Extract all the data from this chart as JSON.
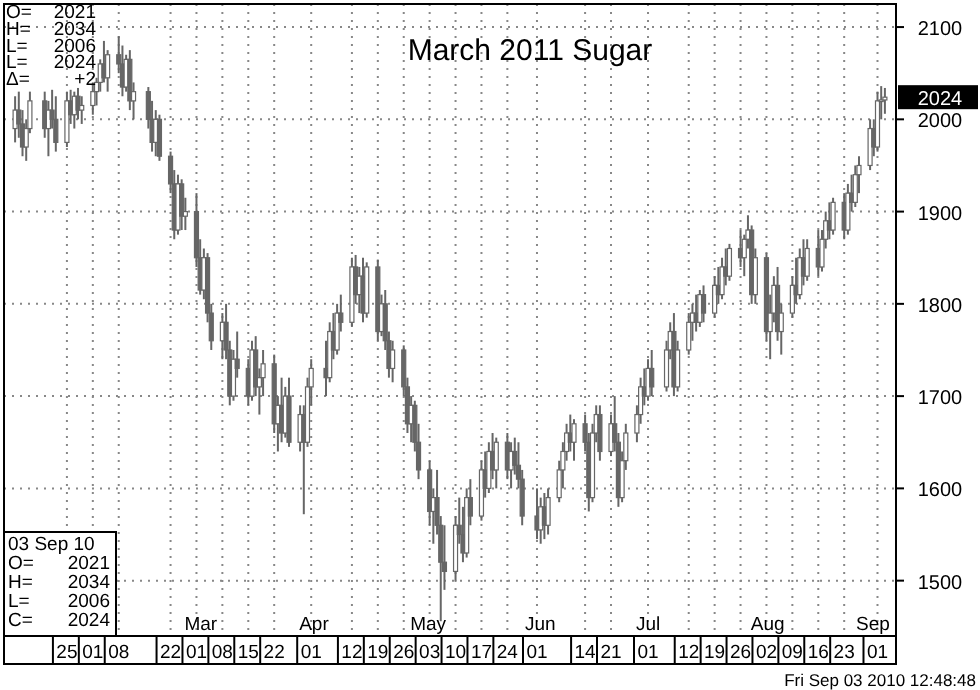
{
  "chart_data": {
    "type": "candlestick",
    "title": "March 2011 Sugar",
    "color": "#666666",
    "grid": true,
    "xlim": [
      "2010-01-08",
      "2010-09-06"
    ],
    "xticks": [
      {
        "value": "2010-01-25",
        "label": "25"
      },
      {
        "value": "2010-02-01",
        "label": "01"
      },
      {
        "value": "2010-02-08",
        "label": "08"
      },
      {
        "value": "2010-02-22",
        "label": "22"
      },
      {
        "value": "2010-03-01",
        "label": "01"
      },
      {
        "value": "2010-03-08",
        "label": "08"
      },
      {
        "value": "2010-03-15",
        "label": "15"
      },
      {
        "value": "2010-03-22",
        "label": "22"
      },
      {
        "value": "2010-04-01",
        "label": "01"
      },
      {
        "value": "2010-04-12",
        "label": "12"
      },
      {
        "value": "2010-04-19",
        "label": "19"
      },
      {
        "value": "2010-04-26",
        "label": "26"
      },
      {
        "value": "2010-05-03",
        "label": "03"
      },
      {
        "value": "2010-05-10",
        "label": "10"
      },
      {
        "value": "2010-05-17",
        "label": "17"
      },
      {
        "value": "2010-05-24",
        "label": "24"
      },
      {
        "value": "2010-06-01",
        "label": "01"
      },
      {
        "value": "2010-06-14",
        "label": "14"
      },
      {
        "value": "2010-06-21",
        "label": "21"
      },
      {
        "value": "2010-07-01",
        "label": "01"
      },
      {
        "value": "2010-07-12",
        "label": "12"
      },
      {
        "value": "2010-07-19",
        "label": "19"
      },
      {
        "value": "2010-07-26",
        "label": "26"
      },
      {
        "value": "2010-08-02",
        "label": "02"
      },
      {
        "value": "2010-08-09",
        "label": "09"
      },
      {
        "value": "2010-08-16",
        "label": "16"
      },
      {
        "value": "2010-08-23",
        "label": "23"
      },
      {
        "value": "2010-09-01",
        "label": "01"
      }
    ],
    "ylim": [
      1440,
      2125
    ],
    "yticks": [
      1500,
      1600,
      1700,
      1800,
      1900,
      2000,
      2100
    ],
    "annotations": [
      "O= 2021",
      "H= 2034",
      "L= 2006",
      "L= 2024",
      "Δ= +2",
      "03 Sep 10",
      "O= 2021",
      "H= 2034",
      "L= 2006",
      "C= 2024",
      {
        "text": "2024",
        "y": 2024
      },
      "Fri Sep 03 2010 12:48:48",
      "Mar",
      "Apr",
      "May",
      "Jun",
      "Jul",
      "Aug",
      "Sep"
    ],
    "x": [
      "2010-01-11",
      "2010-01-12",
      "2010-01-13",
      "2010-01-14",
      "2010-01-15",
      "2010-01-19",
      "2010-01-20",
      "2010-01-21",
      "2010-01-22",
      "2010-01-25",
      "2010-01-26",
      "2010-01-27",
      "2010-01-28",
      "2010-01-29",
      "2010-02-01",
      "2010-02-02",
      "2010-02-03",
      "2010-02-04",
      "2010-02-05",
      "2010-02-08",
      "2010-02-09",
      "2010-02-10",
      "2010-02-11",
      "2010-02-12",
      "2010-02-16",
      "2010-02-17",
      "2010-02-18",
      "2010-02-19",
      "2010-02-22",
      "2010-02-23",
      "2010-02-24",
      "2010-02-25",
      "2010-02-26",
      "2010-03-01",
      "2010-03-02",
      "2010-03-03",
      "2010-03-04",
      "2010-03-05",
      "2010-03-08",
      "2010-03-09",
      "2010-03-10",
      "2010-03-11",
      "2010-03-12",
      "2010-03-15",
      "2010-03-16",
      "2010-03-17",
      "2010-03-18",
      "2010-03-19",
      "2010-03-22",
      "2010-03-23",
      "2010-03-24",
      "2010-03-25",
      "2010-03-26",
      "2010-03-29",
      "2010-03-30",
      "2010-03-31",
      "2010-04-01",
      "2010-04-05",
      "2010-04-06",
      "2010-04-07",
      "2010-04-08",
      "2010-04-09",
      "2010-04-12",
      "2010-04-13",
      "2010-04-14",
      "2010-04-15",
      "2010-04-16",
      "2010-04-19",
      "2010-04-20",
      "2010-04-21",
      "2010-04-22",
      "2010-04-23",
      "2010-04-26",
      "2010-04-27",
      "2010-04-28",
      "2010-04-29",
      "2010-04-30",
      "2010-05-03",
      "2010-05-04",
      "2010-05-05",
      "2010-05-06",
      "2010-05-07",
      "2010-05-10",
      "2010-05-11",
      "2010-05-12",
      "2010-05-13",
      "2010-05-14",
      "2010-05-17",
      "2010-05-18",
      "2010-05-19",
      "2010-05-20",
      "2010-05-21",
      "2010-05-24",
      "2010-05-25",
      "2010-05-26",
      "2010-05-27",
      "2010-05-28",
      "2010-06-01",
      "2010-06-02",
      "2010-06-03",
      "2010-06-04",
      "2010-06-07",
      "2010-06-08",
      "2010-06-09",
      "2010-06-10",
      "2010-06-11",
      "2010-06-14",
      "2010-06-15",
      "2010-06-16",
      "2010-06-17",
      "2010-06-18",
      "2010-06-21",
      "2010-06-22",
      "2010-06-23",
      "2010-06-24",
      "2010-06-25",
      "2010-06-28",
      "2010-06-29",
      "2010-06-30",
      "2010-07-01",
      "2010-07-02",
      "2010-07-06",
      "2010-07-07",
      "2010-07-08",
      "2010-07-09",
      "2010-07-12",
      "2010-07-13",
      "2010-07-14",
      "2010-07-15",
      "2010-07-16",
      "2010-07-19",
      "2010-07-20",
      "2010-07-21",
      "2010-07-22",
      "2010-07-23",
      "2010-07-26",
      "2010-07-27",
      "2010-07-28",
      "2010-07-29",
      "2010-07-30",
      "2010-08-02",
      "2010-08-03",
      "2010-08-04",
      "2010-08-05",
      "2010-08-06",
      "2010-08-09",
      "2010-08-10",
      "2010-08-11",
      "2010-08-12",
      "2010-08-13",
      "2010-08-16",
      "2010-08-17",
      "2010-08-18",
      "2010-08-19",
      "2010-08-20",
      "2010-08-23",
      "2010-08-24",
      "2010-08-25",
      "2010-08-26",
      "2010-08-27",
      "2010-08-30",
      "2010-08-31",
      "2010-09-01",
      "2010-09-02",
      "2010-09-03"
    ],
    "ohlc": [
      [
        1990,
        2025,
        1975,
        2010
      ],
      [
        2010,
        2030,
        1980,
        1995
      ],
      [
        1995,
        2010,
        1960,
        1970
      ],
      [
        1970,
        2000,
        1955,
        1990
      ],
      [
        1990,
        2030,
        1985,
        2020
      ],
      [
        2020,
        2030,
        1980,
        1990
      ],
      [
        1990,
        2020,
        1960,
        2010
      ],
      [
        2010,
        2032,
        1990,
        2000
      ],
      [
        2000,
        2025,
        1965,
        1975
      ],
      [
        1975,
        2030,
        1970,
        2020
      ],
      [
        2020,
        2032,
        1995,
        2005
      ],
      [
        2005,
        2030,
        1990,
        2025
      ],
      [
        2025,
        2034,
        2000,
        2010
      ],
      [
        2010,
        2025,
        1995,
        2015
      ],
      [
        2015,
        2040,
        2005,
        2030
      ],
      [
        2030,
        2045,
        2015,
        2040
      ],
      [
        2040,
        2065,
        2030,
        2060
      ],
      [
        2060,
        2085,
        2040,
        2045
      ],
      [
        2045,
        2075,
        2030,
        2070
      ],
      [
        2070,
        2090,
        2050,
        2060
      ],
      [
        2060,
        2080,
        2025,
        2035
      ],
      [
        2035,
        2070,
        2030,
        2065
      ],
      [
        2065,
        2075,
        2010,
        2020
      ],
      [
        2020,
        2040,
        2000,
        2030
      ],
      [
        2030,
        2035,
        1990,
        2000
      ],
      [
        2000,
        2020,
        1965,
        1975
      ],
      [
        1975,
        2010,
        1960,
        2000
      ],
      [
        2000,
        2005,
        1955,
        1960
      ],
      [
        1960,
        1965,
        1920,
        1930
      ],
      [
        1930,
        1945,
        1870,
        1880
      ],
      [
        1880,
        1940,
        1875,
        1930
      ],
      [
        1930,
        1935,
        1880,
        1895
      ],
      [
        1895,
        1915,
        1880,
        1900
      ],
      [
        1900,
        1920,
        1840,
        1850
      ],
      [
        1850,
        1870,
        1810,
        1815
      ],
      [
        1815,
        1860,
        1805,
        1850
      ],
      [
        1850,
        1855,
        1780,
        1790
      ],
      [
        1790,
        1800,
        1750,
        1760
      ],
      [
        1760,
        1790,
        1740,
        1780
      ],
      [
        1780,
        1800,
        1740,
        1750
      ],
      [
        1750,
        1760,
        1690,
        1700
      ],
      [
        1700,
        1750,
        1695,
        1740
      ],
      [
        1740,
        1770,
        1720,
        1730
      ],
      [
        1730,
        1740,
        1690,
        1700
      ],
      [
        1700,
        1760,
        1695,
        1750
      ],
      [
        1750,
        1765,
        1700,
        1710
      ],
      [
        1710,
        1730,
        1680,
        1720
      ],
      [
        1720,
        1750,
        1700,
        1735
      ],
      [
        1735,
        1745,
        1660,
        1670
      ],
      [
        1670,
        1700,
        1640,
        1690
      ],
      [
        1690,
        1720,
        1650,
        1660
      ],
      [
        1660,
        1710,
        1655,
        1700
      ],
      [
        1700,
        1720,
        1645,
        1650
      ],
      [
        1650,
        1690,
        1640,
        1680
      ],
      [
        1680,
        1690,
        1572,
        1650
      ],
      [
        1650,
        1720,
        1645,
        1710
      ],
      [
        1710,
        1740,
        1690,
        1730
      ],
      [
        1730,
        1760,
        1700,
        1720
      ],
      [
        1720,
        1780,
        1715,
        1770
      ],
      [
        1770,
        1790,
        1740,
        1750
      ],
      [
        1750,
        1800,
        1745,
        1790
      ],
      [
        1790,
        1810,
        1770,
        1780
      ],
      [
        1780,
        1850,
        1775,
        1840
      ],
      [
        1840,
        1853,
        1800,
        1810
      ],
      [
        1810,
        1840,
        1790,
        1830
      ],
      [
        1830,
        1850,
        1780,
        1790
      ],
      [
        1790,
        1845,
        1785,
        1840
      ],
      [
        1840,
        1848,
        1760,
        1770
      ],
      [
        1770,
        1810,
        1765,
        1800
      ],
      [
        1800,
        1815,
        1750,
        1760
      ],
      [
        1760,
        1770,
        1720,
        1730
      ],
      [
        1730,
        1760,
        1715,
        1750
      ],
      [
        1750,
        1755,
        1700,
        1710
      ],
      [
        1710,
        1720,
        1660,
        1670
      ],
      [
        1670,
        1700,
        1650,
        1690
      ],
      [
        1690,
        1695,
        1640,
        1650
      ],
      [
        1650,
        1670,
        1610,
        1620
      ],
      [
        1620,
        1630,
        1560,
        1575
      ],
      [
        1575,
        1600,
        1540,
        1590
      ],
      [
        1590,
        1620,
        1550,
        1560
      ],
      [
        1560,
        1570,
        1456,
        1520
      ],
      [
        1520,
        1560,
        1490,
        1510
      ],
      [
        1510,
        1570,
        1500,
        1560
      ],
      [
        1560,
        1590,
        1540,
        1550
      ],
      [
        1550,
        1580,
        1520,
        1530
      ],
      [
        1530,
        1600,
        1525,
        1590
      ],
      [
        1590,
        1610,
        1560,
        1570
      ],
      [
        1570,
        1630,
        1565,
        1620
      ],
      [
        1620,
        1640,
        1590,
        1600
      ],
      [
        1600,
        1650,
        1595,
        1640
      ],
      [
        1640,
        1660,
        1610,
        1620
      ],
      [
        1620,
        1655,
        1600,
        1650
      ],
      [
        1650,
        1660,
        1610,
        1620
      ],
      [
        1620,
        1650,
        1600,
        1640
      ],
      [
        1640,
        1655,
        1615,
        1625
      ],
      [
        1625,
        1650,
        1600,
        1610
      ],
      [
        1610,
        1620,
        1560,
        1570
      ],
      [
        1570,
        1600,
        1545,
        1555
      ],
      [
        1555,
        1590,
        1540,
        1580
      ],
      [
        1580,
        1595,
        1545,
        1560
      ],
      [
        1560,
        1600,
        1550,
        1590
      ],
      [
        1590,
        1630,
        1585,
        1620
      ],
      [
        1620,
        1650,
        1600,
        1640
      ],
      [
        1640,
        1670,
        1630,
        1660
      ],
      [
        1660,
        1680,
        1640,
        1650
      ],
      [
        1650,
        1675,
        1630,
        1670
      ],
      [
        1670,
        1680,
        1640,
        1650
      ],
      [
        1650,
        1660,
        1575,
        1590
      ],
      [
        1590,
        1670,
        1585,
        1660
      ],
      [
        1660,
        1690,
        1650,
        1680
      ],
      [
        1680,
        1690,
        1630,
        1640
      ],
      [
        1640,
        1680,
        1635,
        1670
      ],
      [
        1670,
        1700,
        1640,
        1650
      ],
      [
        1650,
        1660,
        1580,
        1590
      ],
      [
        1590,
        1640,
        1585,
        1630
      ],
      [
        1630,
        1670,
        1620,
        1660
      ],
      [
        1660,
        1690,
        1650,
        1680
      ],
      [
        1680,
        1720,
        1670,
        1710
      ],
      [
        1710,
        1730,
        1690,
        1700
      ],
      [
        1700,
        1740,
        1695,
        1730
      ],
      [
        1730,
        1750,
        1700,
        1710
      ],
      [
        1710,
        1760,
        1705,
        1750
      ],
      [
        1750,
        1780,
        1740,
        1770
      ],
      [
        1770,
        1790,
        1700,
        1710
      ],
      [
        1710,
        1760,
        1705,
        1750
      ],
      [
        1750,
        1790,
        1745,
        1780
      ],
      [
        1780,
        1800,
        1760,
        1790
      ],
      [
        1790,
        1810,
        1770,
        1780
      ],
      [
        1780,
        1815,
        1775,
        1810
      ],
      [
        1810,
        1820,
        1780,
        1790
      ],
      [
        1790,
        1830,
        1785,
        1820
      ],
      [
        1820,
        1840,
        1800,
        1810
      ],
      [
        1810,
        1850,
        1805,
        1840
      ],
      [
        1840,
        1860,
        1820,
        1830
      ],
      [
        1830,
        1865,
        1825,
        1860
      ],
      [
        1860,
        1880,
        1840,
        1850
      ],
      [
        1850,
        1875,
        1830,
        1870
      ],
      [
        1870,
        1896,
        1860,
        1880
      ],
      [
        1880,
        1885,
        1800,
        1810
      ],
      [
        1810,
        1860,
        1800,
        1850
      ],
      [
        1850,
        1855,
        1760,
        1770
      ],
      [
        1770,
        1810,
        1740,
        1790
      ],
      [
        1790,
        1830,
        1780,
        1820
      ],
      [
        1820,
        1840,
        1760,
        1770
      ],
      [
        1770,
        1800,
        1745,
        1790
      ],
      [
        1790,
        1830,
        1785,
        1820
      ],
      [
        1820,
        1850,
        1800,
        1810
      ],
      [
        1810,
        1860,
        1805,
        1850
      ],
      [
        1850,
        1870,
        1820,
        1830
      ],
      [
        1830,
        1870,
        1825,
        1860
      ],
      [
        1860,
        1880,
        1830,
        1840
      ],
      [
        1840,
        1880,
        1835,
        1870
      ],
      [
        1870,
        1900,
        1860,
        1890
      ],
      [
        1890,
        1910,
        1870,
        1880
      ],
      [
        1880,
        1915,
        1875,
        1910
      ],
      [
        1910,
        1920,
        1870,
        1880
      ],
      [
        1880,
        1930,
        1875,
        1920
      ],
      [
        1920,
        1940,
        1900,
        1910
      ],
      [
        1910,
        1950,
        1905,
        1940
      ],
      [
        1940,
        1960,
        1920,
        1950
      ],
      [
        1950,
        2000,
        1945,
        1990
      ],
      [
        1990,
        2000,
        1960,
        1970
      ],
      [
        1970,
        2030,
        1965,
        2020
      ],
      [
        2020,
        2036,
        2000,
        2021
      ],
      [
        2021,
        2034,
        2006,
        2024
      ]
    ]
  }
}
